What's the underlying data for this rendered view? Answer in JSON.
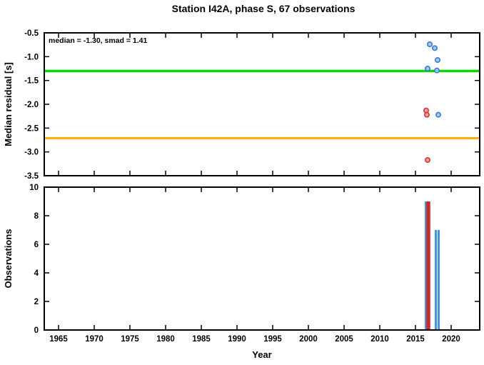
{
  "title": "Station I42A, phase S, 67 observations",
  "colors": {
    "frame": "#000000",
    "median_line": "#00dc00",
    "smad_line": "#ffa800",
    "blue_point_stroke": "#3c78dc",
    "blue_point_fill": "#a0c8f0",
    "red_point_stroke": "#e03030",
    "red_point_fill": "#f0a0a0",
    "bar_blue": "#3c96e6",
    "bar_red": "#d22828"
  },
  "chart_data": [
    {
      "type": "scatter",
      "title": "Station I42A, phase S, 67 observations",
      "xlabel": "",
      "ylabel": "Median residual [s]",
      "xlim": [
        1963,
        2024
      ],
      "ylim": [
        -3.5,
        -0.5
      ],
      "xticks": [
        1965,
        1970,
        1975,
        1980,
        1985,
        1990,
        1995,
        2000,
        2005,
        2010,
        2015,
        2020
      ],
      "yticks": [
        "-0.5",
        "-1.0",
        "-1.5",
        "-2.0",
        "-2.5",
        "-3.0",
        "-3.5"
      ],
      "annotation": "median = -1.30, smad = 1.41",
      "grid": false,
      "hlines": [
        {
          "name": "median-line",
          "y": -1.3,
          "color": "#00dc00",
          "width": 3.5
        },
        {
          "name": "smad-line",
          "y": -2.71,
          "color": "#ffa800",
          "width": 3
        }
      ],
      "series": [
        {
          "name": "blue-residuals",
          "stroke": "#3c78dc",
          "fill": "#a0c8f0",
          "points": [
            [
              2017.0,
              -0.74
            ],
            [
              2017.7,
              -0.82
            ],
            [
              2018.1,
              -1.07
            ],
            [
              2016.7,
              -1.25
            ],
            [
              2018.0,
              -1.29
            ],
            [
              2018.2,
              -2.22
            ]
          ]
        },
        {
          "name": "red-residuals",
          "stroke": "#e03030",
          "fill": "#f0a0a0",
          "points": [
            [
              2016.5,
              -2.13
            ],
            [
              2016.6,
              -2.22
            ],
            [
              2016.7,
              -3.17
            ]
          ]
        }
      ]
    },
    {
      "type": "bar",
      "title": "",
      "xlabel": "Year",
      "ylabel": "Observations",
      "xlim": [
        1963,
        2024
      ],
      "ylim": [
        0,
        10
      ],
      "xticks": [
        1965,
        1970,
        1975,
        1980,
        1985,
        1990,
        1995,
        2000,
        2005,
        2010,
        2015,
        2020
      ],
      "yticks": [
        "0",
        "2",
        "4",
        "6",
        "8",
        "10"
      ],
      "grid": false,
      "bars": [
        {
          "year": 2016.45,
          "count": 9,
          "width": 0.3,
          "color": "#3c96e6"
        },
        {
          "year": 2016.8,
          "count": 9,
          "width": 0.55,
          "color": "#d22828"
        },
        {
          "year": 2017.85,
          "count": 7,
          "width": 0.3,
          "color": "#3c96e6"
        },
        {
          "year": 2018.25,
          "count": 7,
          "width": 0.3,
          "color": "#3c96e6"
        }
      ]
    }
  ]
}
